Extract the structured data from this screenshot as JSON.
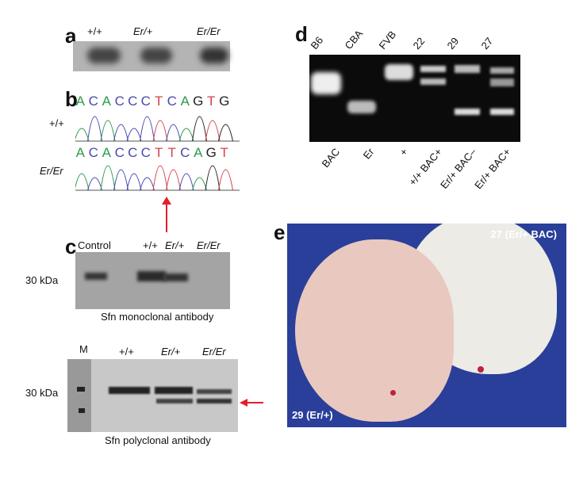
{
  "panels": {
    "a": {
      "label": "a",
      "lanes": [
        "+/+",
        "Er/+",
        "Er/Er"
      ]
    },
    "b": {
      "label": "b",
      "rows": [
        {
          "genotype": "+/+",
          "sequence": [
            "A",
            "C",
            "A",
            "C",
            "C",
            "C",
            "T",
            "C",
            "A",
            "G",
            "T",
            "G"
          ]
        },
        {
          "genotype": "Er/Er",
          "sequence": [
            "A",
            "C",
            "A",
            "C",
            "C",
            "C",
            "T",
            "T",
            "C",
            "A",
            "G",
            "T"
          ]
        }
      ]
    },
    "c": {
      "label": "c",
      "mono": {
        "lanes": [
          "Control",
          "+/+",
          "Er/+",
          "Er/Er"
        ],
        "marker": "30 kDa",
        "caption": "Sfn monoclonal antibody"
      },
      "poly": {
        "lanes": [
          "M",
          "+/+",
          "Er/+",
          "Er/Er"
        ],
        "marker": "30 kDa",
        "caption": "Sfn polyclonal antibody"
      }
    },
    "d": {
      "label": "d",
      "top_labels": [
        "B6",
        "CBA",
        "FVB",
        "22",
        "29",
        "27"
      ],
      "bottom_labels": [
        "BAC",
        "Er",
        "+",
        "+/+ BAC+",
        "Er/+ BAC–",
        "Er/+ BAC+"
      ]
    },
    "e": {
      "label": "e",
      "top_right": "27 (Er/+ BAC)",
      "bottom_left": "29 (Er/+)"
    }
  },
  "colors": {
    "A": "#2e9a4a",
    "C": "#4848b0",
    "G": "#222222",
    "T": "#d8404a",
    "arrow": "#e0202a",
    "photo_bg": "#2a3f9a"
  }
}
